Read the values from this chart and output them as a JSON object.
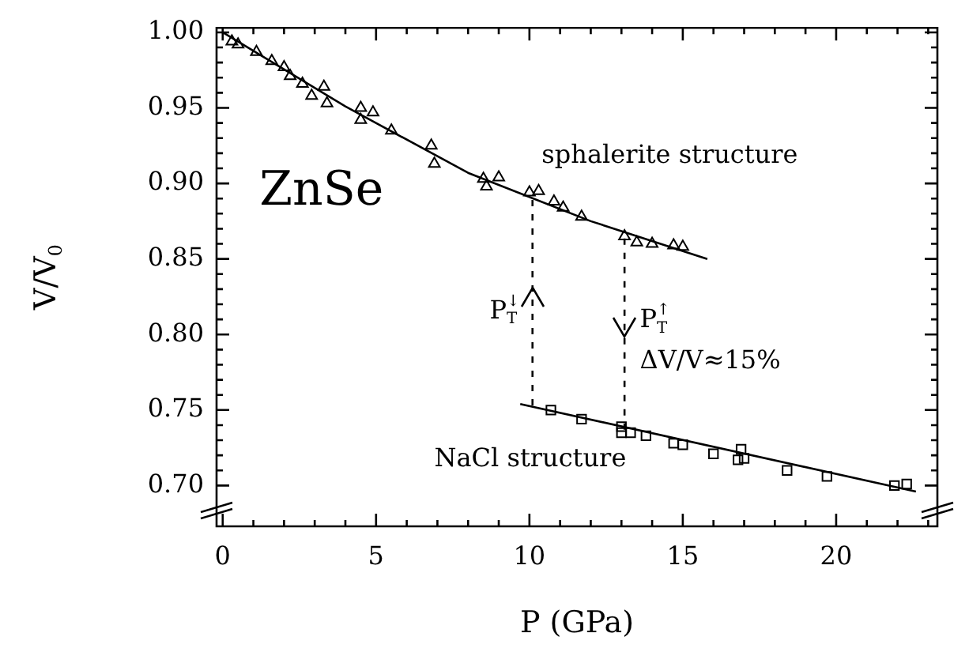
{
  "chart_data": {
    "type": "scatter",
    "xlabel": "P (GPa)",
    "ylabel": "V/V$_{0}$",
    "xlim": [
      -0.2,
      23.3
    ],
    "ylim": [
      0.673,
      1.003
    ],
    "xticks": [
      0,
      {
        "value": 1,
        "label": null
      },
      {
        "value": 2,
        "label": null
      },
      {
        "value": 3,
        "label": null
      },
      {
        "value": 4,
        "label": null
      },
      5,
      {
        "value": 6,
        "label": null
      },
      {
        "value": 7,
        "label": null
      },
      {
        "value": 8,
        "label": null
      },
      {
        "value": 9,
        "label": null
      },
      10,
      {
        "value": 11,
        "label": null
      },
      {
        "value": 12,
        "label": null
      },
      {
        "value": 13,
        "label": null
      },
      {
        "value": 14,
        "label": null
      },
      15,
      {
        "value": 16,
        "label": null
      },
      {
        "value": 17,
        "label": null
      },
      {
        "value": 18,
        "label": null
      },
      {
        "value": 19,
        "label": null
      },
      20,
      {
        "value": 21,
        "label": null
      },
      {
        "value": 22,
        "label": null
      },
      {
        "value": 23,
        "label": null
      }
    ],
    "yticks": [
      {
        "value": 0.7,
        "label": "0.70"
      },
      {
        "value": 0.71,
        "label": null
      },
      {
        "value": 0.72,
        "label": null
      },
      {
        "value": 0.73,
        "label": null
      },
      {
        "value": 0.74,
        "label": null
      },
      {
        "value": 0.75,
        "label": "0.75"
      },
      {
        "value": 0.76,
        "label": null
      },
      {
        "value": 0.77,
        "label": null
      },
      {
        "value": 0.78,
        "label": null
      },
      {
        "value": 0.79,
        "label": null
      },
      {
        "value": 0.8,
        "label": "0.80"
      },
      {
        "value": 0.81,
        "label": null
      },
      {
        "value": 0.82,
        "label": null
      },
      {
        "value": 0.83,
        "label": null
      },
      {
        "value": 0.84,
        "label": null
      },
      {
        "value": 0.85,
        "label": "0.85"
      },
      {
        "value": 0.86,
        "label": null
      },
      {
        "value": 0.87,
        "label": null
      },
      {
        "value": 0.88,
        "label": null
      },
      {
        "value": 0.89,
        "label": null
      },
      {
        "value": 0.9,
        "label": "0.90"
      },
      {
        "value": 0.91,
        "label": null
      },
      {
        "value": 0.92,
        "label": null
      },
      {
        "value": 0.93,
        "label": null
      },
      {
        "value": 0.94,
        "label": null
      },
      {
        "value": 0.95,
        "label": "0.95"
      },
      {
        "value": 0.96,
        "label": null
      },
      {
        "value": 0.97,
        "label": null
      },
      {
        "value": 0.98,
        "label": null
      },
      {
        "value": 0.99,
        "label": null
      },
      {
        "value": 1,
        "label": "1.00"
      }
    ],
    "grid": false,
    "legend": false,
    "series": [
      {
        "marker": "triangle",
        "color": "#000000",
        "x": [
          0.3,
          0.5,
          1.1,
          1.6,
          2.0,
          2.2,
          2.6,
          2.9,
          3.3,
          3.4,
          4.5,
          4.5,
          4.9,
          5.5,
          6.8,
          6.9,
          8.5,
          8.6,
          9.0,
          10.0,
          10.3,
          10.8,
          11.1,
          11.7,
          13.1,
          13.5,
          14.0,
          14.7,
          15.0
        ],
        "values": [
          0.994,
          0.992,
          0.987,
          0.981,
          0.977,
          0.971,
          0.966,
          0.958,
          0.964,
          0.953,
          0.95,
          0.942,
          0.947,
          0.935,
          0.925,
          0.913,
          0.903,
          0.898,
          0.904,
          0.894,
          0.895,
          0.888,
          0.884,
          0.878,
          0.865,
          0.861,
          0.86,
          0.859,
          0.858
        ]
      },
      {
        "marker": "square",
        "color": "#000000",
        "x": [
          10.7,
          11.7,
          13.0,
          13.0,
          13.3,
          13.8,
          14.7,
          15.0,
          16.0,
          16.9,
          16.8,
          17.0,
          18.4,
          19.7,
          21.9,
          22.3
        ],
        "values": [
          0.75,
          0.744,
          0.739,
          0.735,
          0.735,
          0.733,
          0.728,
          0.727,
          0.721,
          0.724,
          0.717,
          0.718,
          0.71,
          0.706,
          0.7,
          0.701
        ]
      },
      {
        "type": "line",
        "marker": "none",
        "line_style": "solid",
        "color": "#000000",
        "x": [
          0,
          4,
          8,
          12,
          15.8
        ],
        "values": [
          1.0,
          0.951,
          0.907,
          0.875,
          0.85
        ]
      },
      {
        "type": "line",
        "marker": "none",
        "line_style": "solid",
        "color": "#000000",
        "x": [
          9.7,
          22.6
        ],
        "values": [
          0.754,
          0.696
        ]
      },
      {
        "type": "line",
        "marker": "none",
        "line_style": "dashed",
        "color": "#000000",
        "x": [
          10.1,
          10.1
        ],
        "values": [
          0.753,
          0.893
        ]
      },
      {
        "type": "line",
        "marker": "none",
        "line_style": "dashed",
        "color": "#000000",
        "x": [
          13.1,
          13.1
        ],
        "values": [
          0.737,
          0.866
        ]
      }
    ],
    "annotations": [
      "ZnSe",
      "sphalerite structure",
      "P$_{T}$$^{↓}$",
      "P$_{T}$$^{↑}$",
      "ΔV/V≈15%",
      "NaCl structure"
    ]
  }
}
